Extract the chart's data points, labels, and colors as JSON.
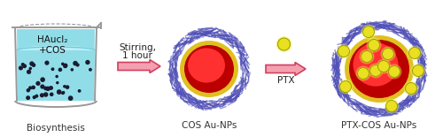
{
  "background_color": "#ffffff",
  "beaker_text1": "HAucl₂",
  "beaker_text2": "+COS",
  "beaker_label": "Biosynthesis",
  "arrow1_label_line1": "Stirring,",
  "arrow1_label_line2": "1 hour",
  "nanoparticle1_label": "COS Au-NPs",
  "arrow2_label": "PTX",
  "nanoparticle2_label": "PTX-COS Au-NPs",
  "beaker_fill_color": "#90dde8",
  "beaker_fill_top_color": "#b8eef5",
  "beaker_outline_color": "#999999",
  "dot_color": "#1a1a30",
  "arrow_body_color": "#f4a0b0",
  "arrow_edge_color": "#d04060",
  "np_core_dark": "#bb0000",
  "np_core_bright": "#ff3030",
  "np_gold_color": "#e0c020",
  "np_shell_color": "#5050b8",
  "ptx_fill": "#e8e020",
  "ptx_outline": "#a0a000",
  "label_fontsize": 7.5,
  "arrow_label_fontsize": 7.5
}
